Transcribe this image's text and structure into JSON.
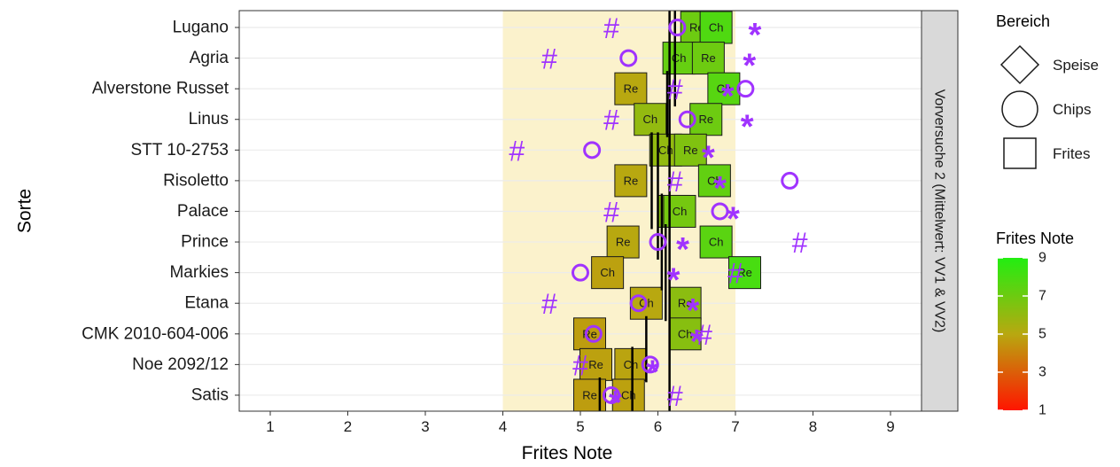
{
  "colors": {
    "band_fill": "#fbf2cc",
    "grid_line": "#ebebeb",
    "axis_line": "#333333",
    "point_color": "#a033ff",
    "box_stroke": "#1a1a1a",
    "strip_fill": "#d9d9d9",
    "gradient_top": "#22ee11",
    "gradient_mid": "#b8a810",
    "gradient_bottom": "#ff1500"
  },
  "chart_data": {
    "type": "scatter",
    "title": "",
    "xlabel": "Frites Note",
    "ylabel": "Sorte",
    "xlim": [
      0.6,
      9.4
    ],
    "x_ticks": [
      "1",
      "2",
      "3",
      "4",
      "5",
      "6",
      "7",
      "8",
      "9"
    ],
    "highlight_band": [
      4,
      7
    ],
    "grid": true,
    "facet_label": "Vorversuche 2 (Mittelwert: VV1 & VV2)",
    "categories": [
      "Lugano",
      "Agria",
      "Alverstone Russet",
      "Linus",
      "STT 10-2753",
      "Risoletto",
      "Palace",
      "Prince",
      "Markies",
      "Etana",
      "CMK 2010-604-006",
      "Noe 2092/12",
      "Satis"
    ],
    "mean_segments": [
      {
        "x": 6.15,
        "from": "Satis",
        "to": "Lugano"
      },
      {
        "x": 6.22,
        "from": "Alverstone Russet",
        "to": "Lugano"
      },
      {
        "x": 6.12,
        "from": "Linus",
        "to": "Alverstone Russet"
      },
      {
        "x": 5.92,
        "from": "Palace",
        "to": "STT 10-2753"
      },
      {
        "x": 6.0,
        "from": "Prince",
        "to": "STT 10-2753"
      },
      {
        "x": 6.05,
        "from": "Markies",
        "to": "Palace"
      },
      {
        "x": 6.1,
        "from": "Etana",
        "to": "Prince"
      },
      {
        "x": 5.85,
        "from": "Noe 2092/12",
        "to": "CMK 2010-604-006"
      },
      {
        "x": 5.67,
        "from": "Satis",
        "to": "Noe 2092/12"
      },
      {
        "x": 5.25,
        "from": "Satis",
        "to": "Satis"
      }
    ],
    "frites_boxes": [
      {
        "sorte": "Lugano",
        "label": "Re",
        "x": 6.5,
        "note": 7.0
      },
      {
        "sorte": "Lugano",
        "label": "Ch",
        "x": 6.75,
        "note": 7.8
      },
      {
        "sorte": "Agria",
        "label": "Ch",
        "x": 6.27,
        "note": 7.2
      },
      {
        "sorte": "Agria",
        "label": "Re",
        "x": 6.65,
        "note": 7.0
      },
      {
        "sorte": "Alverstone Russet",
        "label": "Re",
        "x": 5.65,
        "note": 5.0
      },
      {
        "sorte": "Alverstone Russet",
        "label": "Ch",
        "x": 6.85,
        "note": 7.6
      },
      {
        "sorte": "Linus",
        "label": "Ch",
        "x": 5.9,
        "note": 6.0
      },
      {
        "sorte": "Linus",
        "label": "Re",
        "x": 6.62,
        "note": 7.0
      },
      {
        "sorte": "STT 10-2753",
        "label": "Ch",
        "x": 6.1,
        "note": 6.0
      },
      {
        "sorte": "STT 10-2753",
        "label": "Re",
        "x": 6.42,
        "note": 6.5
      },
      {
        "sorte": "Risoletto",
        "label": "Re",
        "x": 5.65,
        "note": 5.0
      },
      {
        "sorte": "Risoletto",
        "label": "Ch",
        "x": 6.73,
        "note": 7.3
      },
      {
        "sorte": "Palace",
        "label": "Re",
        "x": 6.2,
        "note": 6.3
      },
      {
        "sorte": "Palace",
        "label": "Ch",
        "x": 6.28,
        "note": 6.8
      },
      {
        "sorte": "Prince",
        "label": "Re",
        "x": 5.55,
        "note": 5.0
      },
      {
        "sorte": "Prince",
        "label": "Ch",
        "x": 6.75,
        "note": 7.5
      },
      {
        "sorte": "Markies",
        "label": "Ch",
        "x": 5.35,
        "note": 4.8
      },
      {
        "sorte": "Markies",
        "label": "Re",
        "x": 7.12,
        "note": 8.0
      },
      {
        "sorte": "Etana",
        "label": "Ch",
        "x": 5.85,
        "note": 5.0
      },
      {
        "sorte": "Etana",
        "label": "Re",
        "x": 6.35,
        "note": 6.2
      },
      {
        "sorte": "CMK 2010-604-006",
        "label": "Re",
        "x": 5.12,
        "note": 4.7
      },
      {
        "sorte": "CMK 2010-604-006",
        "label": "Ch",
        "x": 6.35,
        "note": 6.3
      },
      {
        "sorte": "Noe 2092/12",
        "label": "Re",
        "x": 5.2,
        "note": 4.8
      },
      {
        "sorte": "Noe 2092/12",
        "label": "Ch",
        "x": 5.65,
        "note": 4.9
      },
      {
        "sorte": "Satis",
        "label": "Re",
        "x": 5.12,
        "note": 4.7
      },
      {
        "sorte": "Satis",
        "label": "Ch",
        "x": 5.62,
        "note": 4.8
      }
    ],
    "chips_points": [
      {
        "sorte": "Lugano",
        "x": 6.25
      },
      {
        "sorte": "Agria",
        "x": 5.62
      },
      {
        "sorte": "Alverstone Russet",
        "x": 7.13
      },
      {
        "sorte": "Linus",
        "x": 6.38
      },
      {
        "sorte": "STT 10-2753",
        "x": 5.15
      },
      {
        "sorte": "Risoletto",
        "x": 7.7
      },
      {
        "sorte": "Palace",
        "x": 6.8
      },
      {
        "sorte": "Prince",
        "x": 6.0
      },
      {
        "sorte": "Markies",
        "x": 5.0
      },
      {
        "sorte": "Etana",
        "x": 5.75
      },
      {
        "sorte": "CMK 2010-604-006",
        "x": 5.17
      },
      {
        "sorte": "Noe 2092/12",
        "x": 5.9
      },
      {
        "sorte": "Satis",
        "x": 5.4
      }
    ],
    "hash_points": [
      {
        "sorte": "Lugano",
        "x": 5.4
      },
      {
        "sorte": "Agria",
        "x": 4.6
      },
      {
        "sorte": "Alverstone Russet",
        "x": 6.22
      },
      {
        "sorte": "Linus",
        "x": 5.4
      },
      {
        "sorte": "STT 10-2753",
        "x": 4.18
      },
      {
        "sorte": "Risoletto",
        "x": 6.22
      },
      {
        "sorte": "Palace",
        "x": 5.4
      },
      {
        "sorte": "Prince",
        "x": 7.83
      },
      {
        "sorte": "Markies",
        "x": 7.0
      },
      {
        "sorte": "Etana",
        "x": 4.6
      },
      {
        "sorte": "CMK 2010-604-006",
        "x": 6.6
      },
      {
        "sorte": "Noe 2092/12",
        "x": 5.0
      },
      {
        "sorte": "Satis",
        "x": 6.22
      }
    ],
    "star_points": [
      {
        "sorte": "Lugano",
        "x": 7.25
      },
      {
        "sorte": "Agria",
        "x": 7.18
      },
      {
        "sorte": "Alverstone Russet",
        "x": 6.9
      },
      {
        "sorte": "Linus",
        "x": 7.15
      },
      {
        "sorte": "STT 10-2753",
        "x": 6.65
      },
      {
        "sorte": "Risoletto",
        "x": 6.8
      },
      {
        "sorte": "Palace",
        "x": 6.97
      },
      {
        "sorte": "Prince",
        "x": 6.32
      },
      {
        "sorte": "Markies",
        "x": 6.2
      },
      {
        "sorte": "Etana",
        "x": 6.45
      },
      {
        "sorte": "CMK 2010-604-006",
        "x": 6.5
      },
      {
        "sorte": "Noe 2092/12",
        "x": 5.93
      },
      {
        "sorte": "Satis",
        "x": 5.45
      }
    ],
    "legend_shape": {
      "title": "Bereich",
      "items": [
        {
          "label": "Speise",
          "shape": "diamond"
        },
        {
          "label": "Chips",
          "shape": "circle"
        },
        {
          "label": "Frites",
          "shape": "square"
        }
      ]
    },
    "legend_color": {
      "title": "Frites Note",
      "range": [
        1,
        9
      ],
      "ticks": [
        "1",
        "3",
        "5",
        "7",
        "9"
      ]
    }
  }
}
